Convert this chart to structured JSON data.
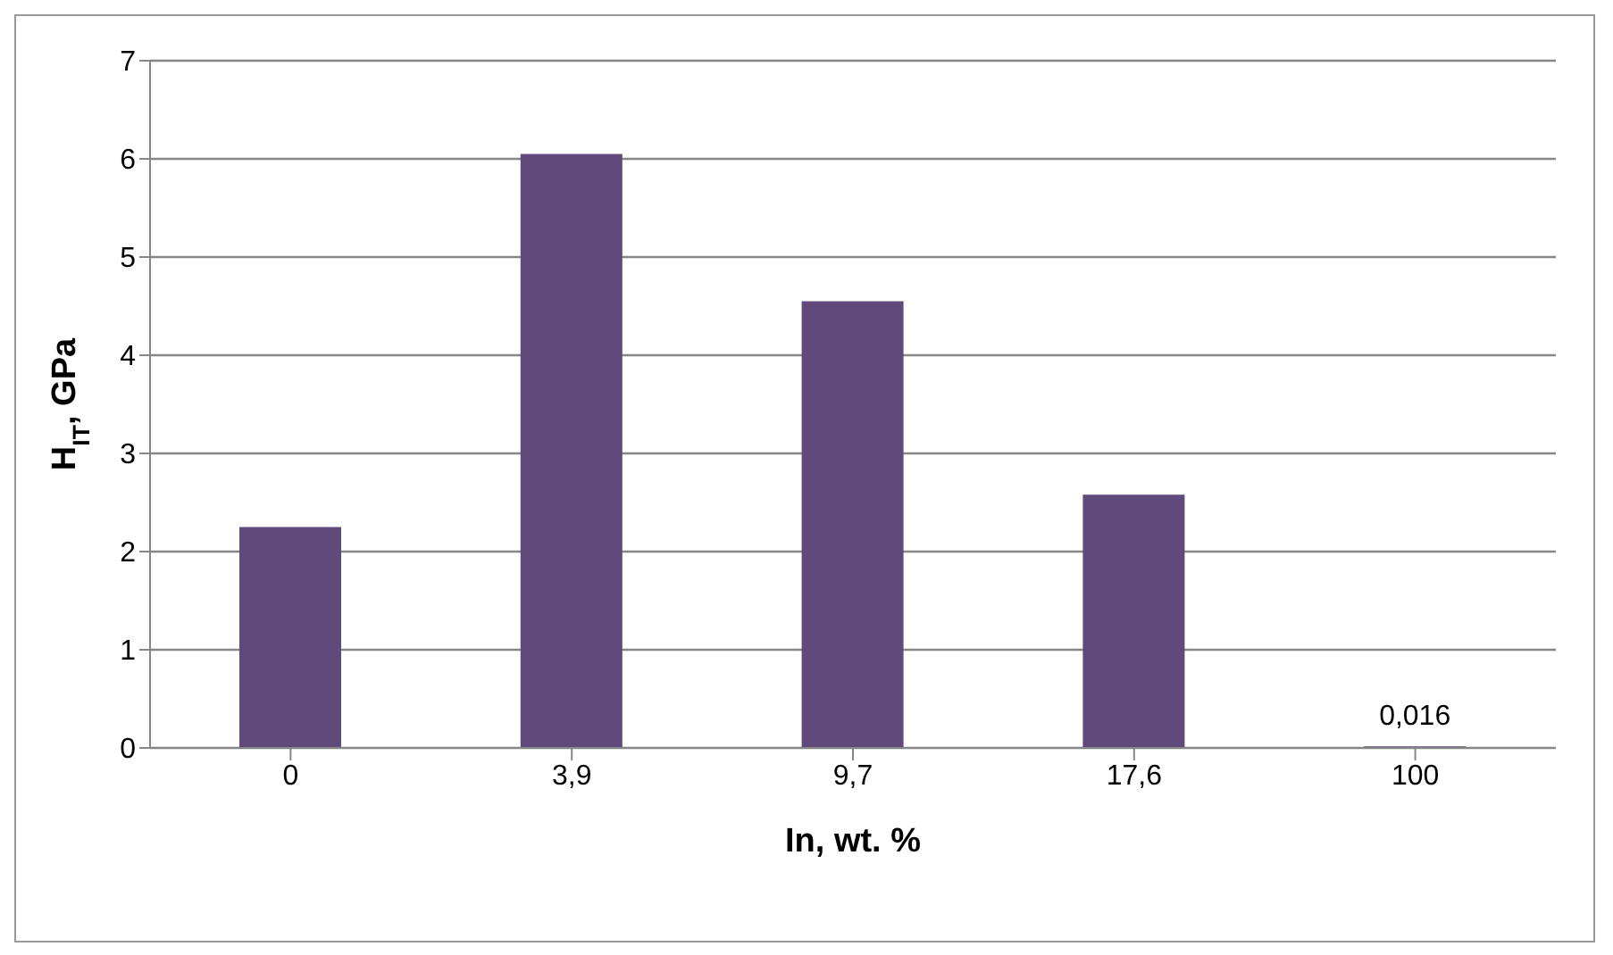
{
  "chart_data": {
    "type": "bar",
    "xlabel": "In, wt. %",
    "ylabel": "H$_{IT}$, GPa",
    "categories": [
      "0",
      "3,9",
      "9,7",
      "17,6",
      "100"
    ],
    "values": [
      2.25,
      6.05,
      4.55,
      2.58,
      0.016
    ],
    "value_labels": [
      null,
      null,
      null,
      null,
      "0,016"
    ],
    "color": "#604a7b",
    "ylim": [
      0,
      7
    ],
    "yticks": [
      0,
      1,
      2,
      3,
      4,
      5,
      6,
      7
    ],
    "grid": "y",
    "legend": false
  }
}
